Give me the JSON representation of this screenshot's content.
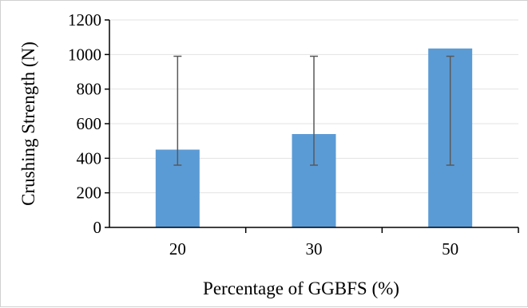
{
  "chart_data": {
    "type": "bar",
    "title": "",
    "xlabel": "Percentage of GGBFS (%)",
    "ylabel": "Crushing Strength (N)",
    "categories": [
      "20",
      "30",
      "50"
    ],
    "series": [
      {
        "values": [
          450,
          540,
          1035
        ],
        "error_low": [
          360,
          360,
          360
        ],
        "error_high": [
          990,
          990,
          990
        ]
      }
    ],
    "ylim": [
      0,
      1200
    ],
    "yticks": [
      "0",
      "200",
      "400",
      "600",
      "800",
      "1000",
      "1200"
    ],
    "grid": "horizontal",
    "legend": "none",
    "colors": {
      "bar": "#5b9bd5",
      "error_bar": "#595959",
      "grid": "#e3e3e3",
      "axis": "#000000"
    }
  }
}
